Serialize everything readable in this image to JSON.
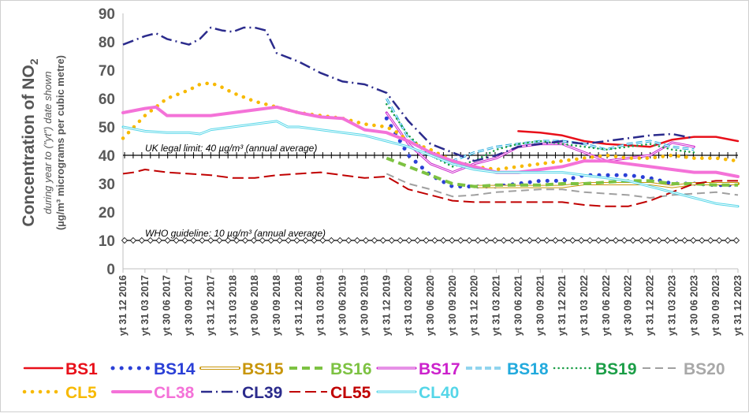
{
  "chart_data": {
    "type": "line",
    "ylabel_main": "Concentration of NO",
    "ylabel_main_sub": "2",
    "ylabel_line2": "during year to (\"yt\") date shown",
    "ylabel_line3": "(µg/m³ micrograms per cubic metre)",
    "ylim": [
      0,
      90
    ],
    "yticks": [
      "0",
      "10",
      "20",
      "30",
      "40",
      "50",
      "60",
      "70",
      "80",
      "90"
    ],
    "x_dates": [
      "yt 31 12 2016",
      "yt 31 03 2017",
      "yt 30 06 2017",
      "yt 30 09 2017",
      "yt 31 12 2017",
      "yt 31 03 2018",
      "yt 30 06 2018",
      "yt 30 09 2018",
      "yt 31 12 2018",
      "yt 31 03 2019",
      "yt 30 06 2019",
      "yt 30 09 2019",
      "yt 31 12 2019",
      "yt 31 03 2020",
      "yt 30 06 2020",
      "yt 30 09 2020",
      "yt 31 12 2020",
      "yt 31 03 2021",
      "yt 30 06 2021",
      "yt 30 09 2021",
      "yt 31 12 2021",
      "yt 31 03 2022",
      "yt 30 06 2022",
      "yt 30 09 2022",
      "yt 31 12 2022",
      "yt 31 03 2023",
      "yt 30 06 2023",
      "yt 30 09 2023",
      "yt 31 12 2023"
    ],
    "limits": [
      {
        "label": "UK legal limit:  40 µg/m³ (annual average)",
        "value": 40
      },
      {
        "label": "WHO guideline:  10 µg/m³ (annual average)",
        "value": 10
      }
    ],
    "series": [
      {
        "name": "BS1",
        "color": "#e8101a",
        "style": "solid",
        "width": 2.5,
        "legend_color": "#e8101a",
        "points": [
          [
            18,
            48.5
          ],
          [
            19,
            48
          ],
          [
            20,
            47
          ],
          [
            21,
            45
          ],
          [
            22,
            44
          ],
          [
            23,
            43.5
          ],
          [
            24,
            43
          ],
          [
            25,
            45.5
          ],
          [
            26,
            46.5
          ],
          [
            27,
            46.5
          ],
          [
            28,
            45
          ]
        ]
      },
      {
        "name": "BS14",
        "color": "#2a3fd6",
        "style": "dots",
        "width": 5,
        "legend_color": "#2a3fd6",
        "points": [
          [
            12,
            53
          ],
          [
            13,
            40
          ],
          [
            14,
            33
          ],
          [
            15,
            29
          ],
          [
            16,
            29
          ],
          [
            17,
            29
          ],
          [
            18,
            30
          ],
          [
            19,
            31
          ],
          [
            20,
            31
          ],
          [
            21,
            33
          ],
          [
            22,
            33
          ],
          [
            23,
            33
          ],
          [
            24,
            32
          ],
          [
            25,
            30
          ],
          [
            26,
            30
          ],
          [
            27,
            29.5
          ],
          [
            28,
            29.5
          ]
        ]
      },
      {
        "name": "BS15",
        "color": "#c8960c",
        "style": "double",
        "width": 4,
        "legend_color": "#c8960c",
        "points": [
          [
            16,
            29
          ],
          [
            17,
            29
          ],
          [
            18,
            29
          ],
          [
            19,
            29
          ],
          [
            20,
            29
          ],
          [
            21,
            30
          ],
          [
            22,
            30
          ],
          [
            23,
            30
          ],
          [
            24,
            30
          ],
          [
            25,
            29
          ],
          [
            26,
            30
          ],
          [
            27,
            30
          ],
          [
            28,
            30
          ]
        ]
      },
      {
        "name": "BS16",
        "color": "#7dc242",
        "style": "dash",
        "width": 4,
        "legend_color": "#7dc242",
        "points": [
          [
            12,
            39
          ],
          [
            13,
            36
          ],
          [
            14,
            33
          ],
          [
            15,
            30
          ],
          [
            16,
            29
          ],
          [
            17,
            29.5
          ],
          [
            18,
            29.5
          ],
          [
            19,
            29.5
          ],
          [
            20,
            30
          ],
          [
            21,
            30
          ],
          [
            22,
            30.5
          ],
          [
            23,
            31
          ],
          [
            24,
            31
          ],
          [
            25,
            30
          ],
          [
            26,
            30
          ],
          [
            27,
            29.5
          ],
          [
            28,
            29.5
          ]
        ]
      },
      {
        "name": "BS17",
        "color": "#cc22cc",
        "style": "double",
        "width": 3,
        "legend_color": "#cc22cc",
        "points": [
          [
            12,
            55
          ],
          [
            13,
            44
          ],
          [
            14,
            37
          ],
          [
            15,
            34
          ],
          [
            16,
            37
          ],
          [
            17,
            39
          ],
          [
            18,
            43
          ],
          [
            19,
            44
          ],
          [
            20,
            44
          ],
          [
            21,
            41
          ],
          [
            22,
            38
          ],
          [
            23,
            39
          ],
          [
            24,
            40
          ],
          [
            25,
            44.5
          ],
          [
            26,
            43
          ]
        ]
      },
      {
        "name": "BS18",
        "color": "#22aadd",
        "style": "dashdouble",
        "width": 3,
        "legend_color": "#22aadd",
        "points": [
          [
            12,
            60
          ],
          [
            13,
            46
          ],
          [
            14,
            40
          ],
          [
            15,
            38
          ],
          [
            16,
            41
          ],
          [
            17,
            43
          ],
          [
            18,
            44
          ],
          [
            19,
            45
          ],
          [
            20,
            45
          ],
          [
            21,
            44
          ],
          [
            22,
            42
          ],
          [
            23,
            44
          ],
          [
            24,
            45
          ],
          [
            25,
            43
          ],
          [
            26,
            42
          ]
        ]
      },
      {
        "name": "BS19",
        "color": "#1b9e47",
        "style": "dots",
        "width": 2.5,
        "legend_color": "#1b9e47",
        "points": [
          [
            12,
            58
          ],
          [
            13,
            47
          ],
          [
            14,
            40
          ],
          [
            15,
            36
          ],
          [
            16,
            38
          ],
          [
            17,
            42
          ],
          [
            18,
            44
          ],
          [
            19,
            45
          ],
          [
            20,
            44
          ],
          [
            21,
            43
          ],
          [
            22,
            42
          ],
          [
            23,
            43
          ],
          [
            24,
            44
          ],
          [
            25,
            42
          ],
          [
            26,
            41
          ]
        ]
      },
      {
        "name": "BS20",
        "color": "#a0a0a0",
        "style": "dash",
        "width": 2,
        "legend_color": "#a8a8a8",
        "points": [
          [
            12,
            33.5
          ],
          [
            13,
            30
          ],
          [
            14,
            28
          ],
          [
            15,
            25.5
          ],
          [
            16,
            26
          ],
          [
            17,
            27
          ],
          [
            18,
            27.5
          ],
          [
            19,
            28
          ],
          [
            20,
            28
          ],
          [
            21,
            27
          ],
          [
            22,
            26.5
          ],
          [
            23,
            26
          ],
          [
            24,
            25
          ],
          [
            25,
            26
          ],
          [
            26,
            26.5
          ],
          [
            27,
            27
          ],
          [
            28,
            26
          ]
        ]
      },
      {
        "name": "CL5",
        "color": "#f7b900",
        "style": "dots",
        "width": 4.5,
        "legend_color": "#f7b900",
        "points": [
          [
            0,
            46
          ],
          [
            1,
            54
          ],
          [
            2,
            60
          ],
          [
            3,
            63
          ],
          [
            3.5,
            65
          ],
          [
            4,
            65.5
          ],
          [
            4.5,
            64
          ],
          [
            5,
            62
          ],
          [
            6,
            59
          ],
          [
            7,
            57
          ],
          [
            8,
            55
          ],
          [
            9,
            54
          ],
          [
            10,
            53
          ],
          [
            11,
            51
          ],
          [
            12,
            50
          ],
          [
            12.5,
            48
          ],
          [
            13,
            45
          ],
          [
            14,
            42
          ],
          [
            15,
            38
          ],
          [
            16,
            36
          ],
          [
            17,
            35
          ],
          [
            18,
            36
          ],
          [
            19,
            37
          ],
          [
            20,
            38
          ],
          [
            21,
            39
          ],
          [
            22,
            40
          ],
          [
            23,
            39
          ],
          [
            24,
            39
          ],
          [
            25,
            40
          ],
          [
            26,
            39
          ],
          [
            27,
            39
          ],
          [
            28,
            38
          ]
        ]
      },
      {
        "name": "CL38",
        "color": "#f472d8",
        "style": "solid",
        "width": 4,
        "legend_color": "#f472d8",
        "points": [
          [
            0,
            55
          ],
          [
            1,
            56.5
          ],
          [
            1.5,
            57
          ],
          [
            2,
            54
          ],
          [
            3,
            54
          ],
          [
            4,
            54
          ],
          [
            5,
            55
          ],
          [
            6,
            56
          ],
          [
            7,
            57
          ],
          [
            8,
            55
          ],
          [
            9,
            53.5
          ],
          [
            10,
            53
          ],
          [
            11,
            49
          ],
          [
            12,
            48
          ],
          [
            13,
            45
          ],
          [
            14,
            41
          ],
          [
            15,
            38
          ],
          [
            16,
            36
          ],
          [
            17,
            34
          ],
          [
            18,
            34
          ],
          [
            19,
            35
          ],
          [
            20,
            36
          ],
          [
            21,
            38
          ],
          [
            22,
            38
          ],
          [
            23,
            37
          ],
          [
            24,
            36
          ],
          [
            25,
            35
          ],
          [
            26,
            34
          ],
          [
            27,
            34
          ],
          [
            28,
            32.5
          ]
        ]
      },
      {
        "name": "CL39",
        "color": "#2b2b8c",
        "style": "dashdot",
        "width": 2.5,
        "legend_color": "#2b2b8c",
        "points": [
          [
            0,
            79
          ],
          [
            1,
            82
          ],
          [
            1.5,
            83
          ],
          [
            2,
            81
          ],
          [
            3,
            79
          ],
          [
            3.5,
            81
          ],
          [
            4,
            85
          ],
          [
            4.5,
            84
          ],
          [
            5,
            83.5
          ],
          [
            5.5,
            85
          ],
          [
            6,
            85
          ],
          [
            6.5,
            84
          ],
          [
            7,
            76
          ],
          [
            8,
            73
          ],
          [
            9,
            69
          ],
          [
            10,
            66
          ],
          [
            11,
            65
          ],
          [
            12,
            62
          ],
          [
            13,
            52
          ],
          [
            14,
            44
          ],
          [
            15,
            41
          ],
          [
            16,
            38
          ],
          [
            17,
            40
          ],
          [
            18,
            43
          ],
          [
            19,
            44
          ],
          [
            20,
            45
          ],
          [
            21,
            44
          ],
          [
            22,
            45
          ],
          [
            23,
            46
          ],
          [
            24,
            47
          ],
          [
            25,
            47.5
          ],
          [
            26,
            46
          ]
        ]
      },
      {
        "name": "CL55",
        "color": "#c00000",
        "style": "longdash",
        "width": 2,
        "legend_color": "#c00000",
        "points": [
          [
            0,
            33.5
          ],
          [
            0.5,
            34
          ],
          [
            1,
            35
          ],
          [
            2,
            34
          ],
          [
            3,
            33.5
          ],
          [
            4,
            33
          ],
          [
            5,
            32
          ],
          [
            6,
            32
          ],
          [
            7,
            33
          ],
          [
            8,
            33.5
          ],
          [
            9,
            34
          ],
          [
            10,
            33
          ],
          [
            11,
            32
          ],
          [
            12,
            32.5
          ],
          [
            13,
            28
          ],
          [
            14,
            26
          ],
          [
            15,
            24
          ],
          [
            16,
            23.5
          ],
          [
            17,
            23.5
          ],
          [
            18,
            23.5
          ],
          [
            19,
            23.5
          ],
          [
            20,
            23.5
          ],
          [
            21,
            22.5
          ],
          [
            22,
            22
          ],
          [
            23,
            22
          ],
          [
            24,
            24
          ],
          [
            25,
            27
          ],
          [
            26,
            30
          ],
          [
            27,
            31
          ],
          [
            28,
            31
          ]
        ]
      },
      {
        "name": "CL40",
        "color": "#55d6e8",
        "style": "double",
        "width": 3,
        "legend_color": "#55d6e8",
        "points": [
          [
            0,
            50
          ],
          [
            1,
            48.5
          ],
          [
            2,
            48
          ],
          [
            3,
            48
          ],
          [
            3.5,
            47.5
          ],
          [
            4,
            49
          ],
          [
            5,
            50
          ],
          [
            6,
            51
          ],
          [
            7,
            52
          ],
          [
            7.5,
            50
          ],
          [
            8,
            50
          ],
          [
            9,
            49
          ],
          [
            10,
            48
          ],
          [
            11,
            47
          ],
          [
            12,
            45
          ],
          [
            13,
            43
          ],
          [
            14,
            40
          ],
          [
            15,
            37
          ],
          [
            16,
            35
          ],
          [
            17,
            34
          ],
          [
            18,
            34
          ],
          [
            19,
            34
          ],
          [
            20,
            34
          ],
          [
            21,
            33
          ],
          [
            22,
            32
          ],
          [
            23,
            31
          ],
          [
            24,
            29
          ],
          [
            25,
            27
          ],
          [
            26,
            25
          ],
          [
            27,
            23
          ],
          [
            28,
            22
          ]
        ]
      }
    ]
  }
}
